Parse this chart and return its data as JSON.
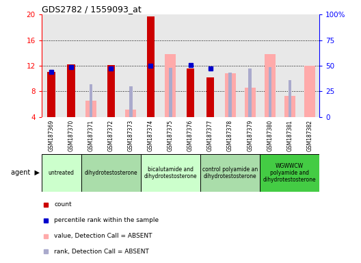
{
  "title": "GDS2782 / 1559093_at",
  "samples": [
    "GSM187369",
    "GSM187370",
    "GSM187371",
    "GSM187372",
    "GSM187373",
    "GSM187374",
    "GSM187375",
    "GSM187376",
    "GSM187377",
    "GSM187378",
    "GSM187379",
    "GSM187380",
    "GSM187381",
    "GSM187382"
  ],
  "count_values": [
    11.0,
    12.2,
    null,
    12.1,
    null,
    19.7,
    null,
    11.6,
    10.2,
    null,
    null,
    null,
    null,
    null
  ],
  "rank_values": [
    11.0,
    11.8,
    null,
    11.6,
    null,
    12.0,
    null,
    12.1,
    11.6,
    null,
    null,
    null,
    null,
    null
  ],
  "absent_value_bars": [
    null,
    null,
    6.5,
    null,
    5.2,
    null,
    13.8,
    null,
    null,
    10.8,
    8.6,
    13.8,
    7.3,
    12.0
  ],
  "absent_rank_bars": [
    null,
    null,
    9.1,
    null,
    8.8,
    null,
    11.7,
    null,
    null,
    10.9,
    11.6,
    11.8,
    9.8,
    null
  ],
  "ylim": [
    4,
    20
  ],
  "yticks_left": [
    4,
    8,
    12,
    16,
    20
  ],
  "yticks_right": [
    0,
    25,
    50,
    75,
    100
  ],
  "groups": [
    {
      "label": "untreated",
      "start": 0,
      "end": 2
    },
    {
      "label": "dihydrotestosterone",
      "start": 2,
      "end": 5
    },
    {
      "label": "bicalutamide and\ndihydrotestosterone",
      "start": 5,
      "end": 8
    },
    {
      "label": "control polyamide an\ndihydrotestosterone",
      "start": 8,
      "end": 11
    },
    {
      "label": "WGWWCW\npolyamide and\ndihydrotestosterone",
      "start": 11,
      "end": 14
    }
  ],
  "count_color": "#cc0000",
  "rank_color": "#0000cc",
  "absent_value_color": "#ffaaaa",
  "absent_rank_color": "#aaaacc",
  "plot_bg_color": "#e8e8e8",
  "label_bg_color": "#d0d0d0",
  "group_colors": [
    "#ccffcc",
    "#aaddaa",
    "#ccffcc",
    "#aaddaa",
    "#44cc44"
  ],
  "legend_items": [
    {
      "color": "#cc0000",
      "label": "count"
    },
    {
      "color": "#0000cc",
      "label": "percentile rank within the sample"
    },
    {
      "color": "#ffaaaa",
      "label": "value, Detection Call = ABSENT"
    },
    {
      "color": "#aaaacc",
      "label": "rank, Detection Call = ABSENT"
    }
  ]
}
